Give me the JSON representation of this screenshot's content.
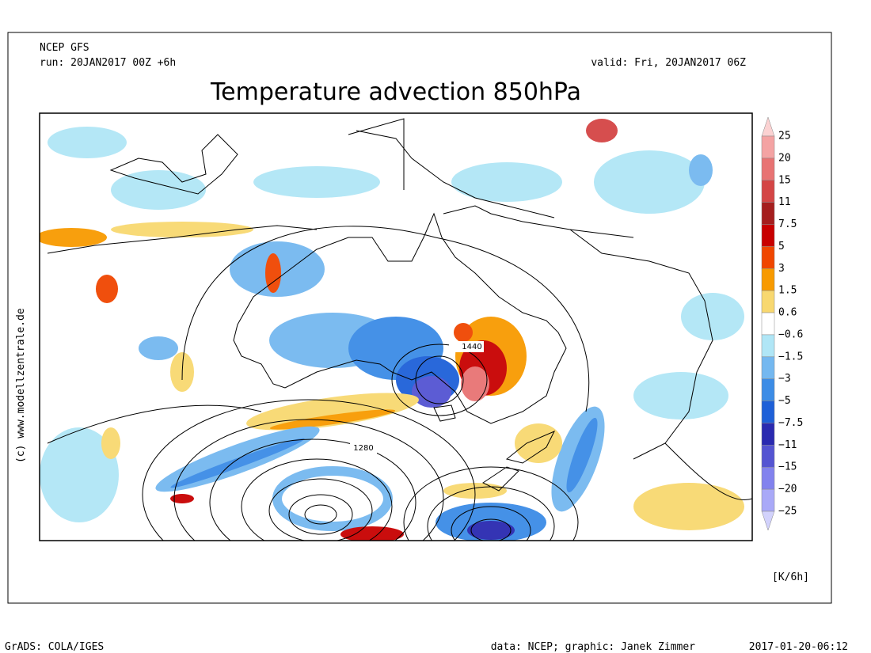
{
  "header": {
    "model": "NCEP GFS",
    "run": "run: 20JAN2017 00Z +6h",
    "valid": "valid: Fri, 20JAN2017 06Z",
    "title": "Temperature advection 850hPa"
  },
  "copyright": "(c) www.modellzentrale.de",
  "units": "[K/6h]",
  "map": {
    "contour_labels": [
      "1440",
      "1280"
    ]
  },
  "colorbar": {
    "labels": [
      "25",
      "20",
      "15",
      "11",
      "7.5",
      "5",
      "3",
      "1.5",
      "0.6",
      "−0.6",
      "−1.5",
      "−3",
      "−5",
      "−7.5",
      "−11",
      "−15",
      "−20",
      "−25"
    ],
    "colors": [
      "#fbd2d2",
      "#f4a3a3",
      "#e87373",
      "#d44545",
      "#a51e1e",
      "#c80000",
      "#f04600",
      "#f89a00",
      "#f8d870",
      "#ffffff",
      "#b0e6f6",
      "#74b8f0",
      "#3c8ce6",
      "#1e60d8",
      "#2a2ab0",
      "#5454d2",
      "#8282ee",
      "#a9a9f8",
      "#d2d2fc"
    ]
  },
  "footer": {
    "software": "GrADS: COLA/IGES",
    "credits": "data: NCEP; graphic: Janek Zimmer",
    "timestamp": "2017-01-20-06:12"
  }
}
